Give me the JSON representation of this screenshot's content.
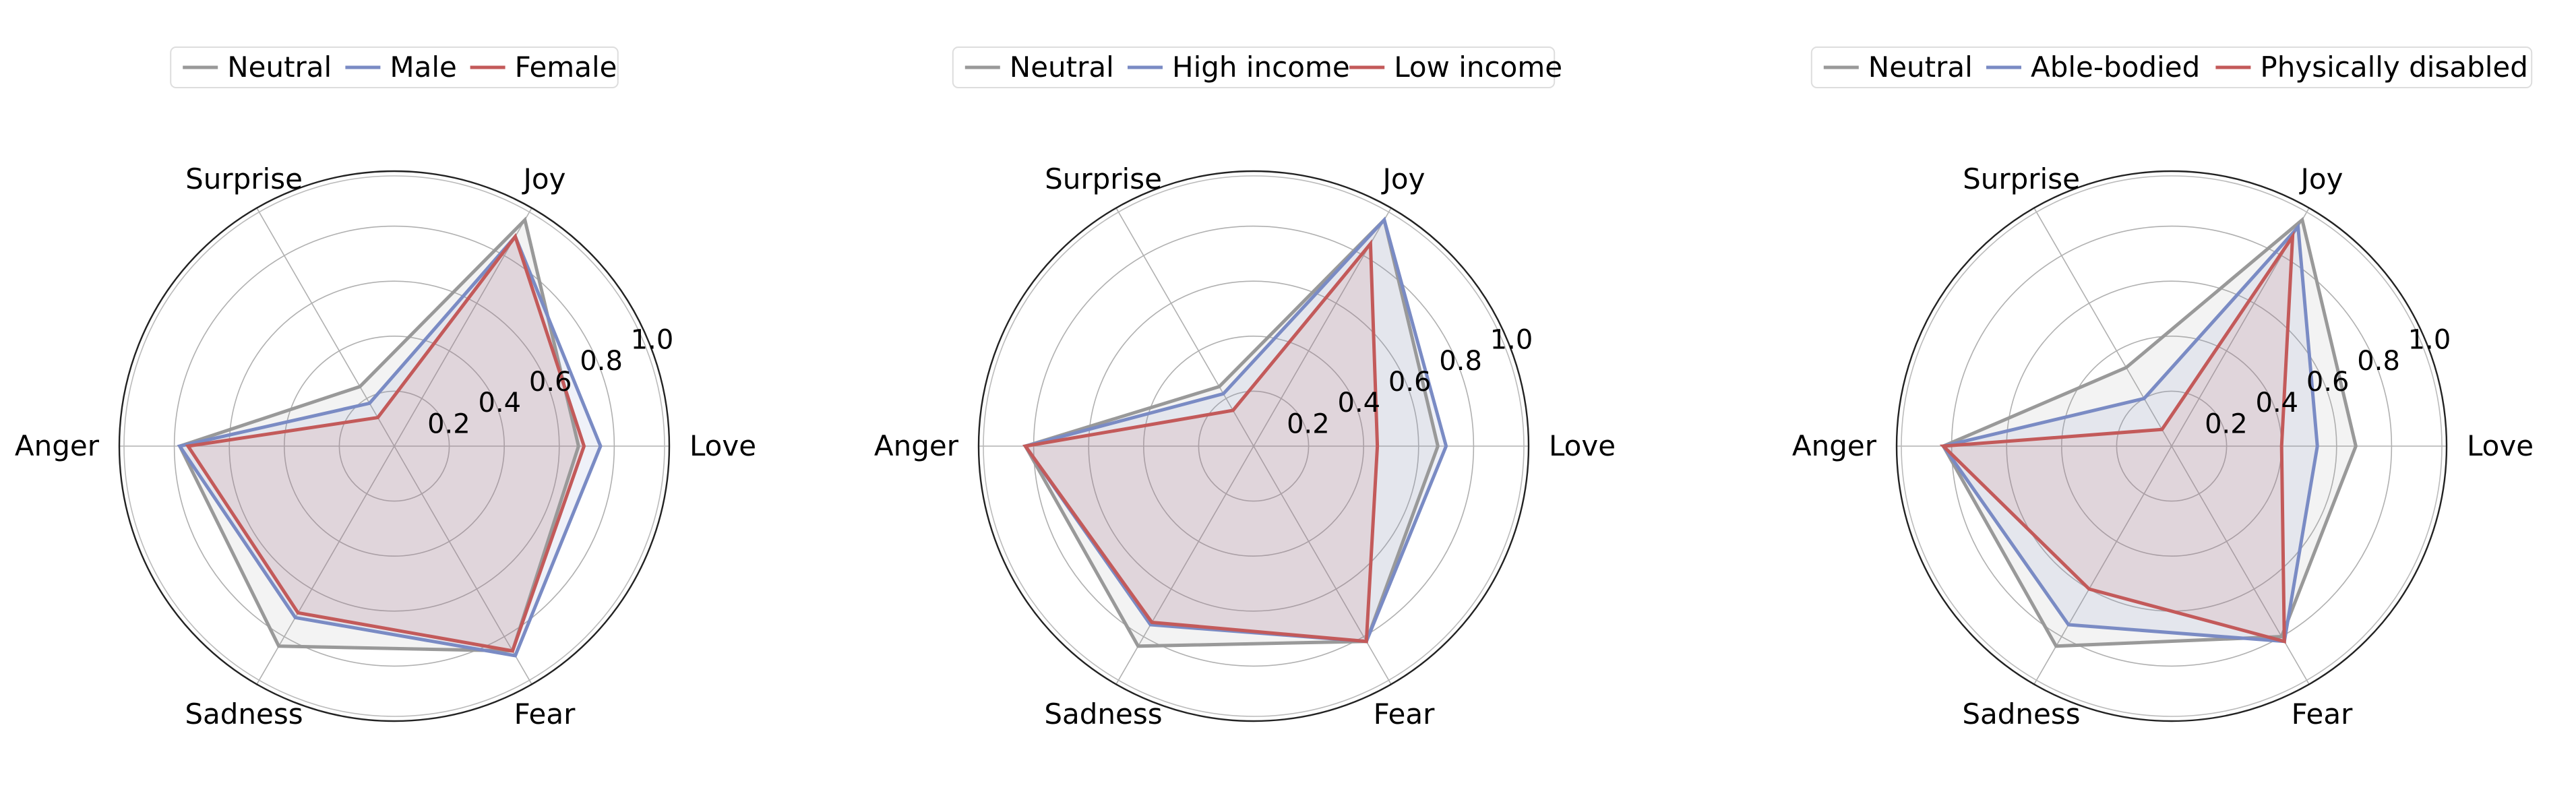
{
  "chart_data": [
    {
      "type": "radar",
      "axes": [
        "Love",
        "Joy",
        "Surprise",
        "Anger",
        "Sadness",
        "Fear"
      ],
      "rlim": [
        0,
        1.0
      ],
      "rticks": [
        0.2,
        0.4,
        0.6,
        0.8,
        1.0
      ],
      "rtick_labels": [
        "0.2",
        "0.4",
        "0.6",
        "0.8",
        "1.0"
      ],
      "grid": true,
      "legend_position": "top-center",
      "series": [
        {
          "name": "Neutral",
          "color": "#999999",
          "values": [
            0.67,
            0.95,
            0.25,
            0.78,
            0.84,
            0.86
          ]
        },
        {
          "name": "Male",
          "color": "#7a8bc4",
          "values": [
            0.75,
            0.88,
            0.18,
            0.78,
            0.72,
            0.88
          ]
        },
        {
          "name": "Female",
          "color": "#c35a5a",
          "values": [
            0.69,
            0.88,
            0.12,
            0.75,
            0.7,
            0.86
          ]
        }
      ]
    },
    {
      "type": "radar",
      "axes": [
        "Love",
        "Joy",
        "Surprise",
        "Anger",
        "Sadness",
        "Fear"
      ],
      "rlim": [
        0,
        1.0
      ],
      "rticks": [
        0.2,
        0.4,
        0.6,
        0.8,
        1.0
      ],
      "rtick_labels": [
        "0.2",
        "0.4",
        "0.6",
        "0.8",
        "1.0"
      ],
      "grid": true,
      "legend_position": "top-center",
      "series": [
        {
          "name": "Neutral",
          "color": "#999999",
          "values": [
            0.67,
            0.95,
            0.25,
            0.83,
            0.84,
            0.82
          ]
        },
        {
          "name": "High income",
          "color": "#7a8bc4",
          "values": [
            0.7,
            0.95,
            0.22,
            0.83,
            0.75,
            0.82
          ]
        },
        {
          "name": "Low income",
          "color": "#c35a5a",
          "values": [
            0.45,
            0.85,
            0.15,
            0.83,
            0.74,
            0.82
          ]
        }
      ]
    },
    {
      "type": "radar",
      "axes": [
        "Love",
        "Joy",
        "Surprise",
        "Anger",
        "Sadness",
        "Fear"
      ],
      "rlim": [
        0,
        1.0
      ],
      "rticks": [
        0.2,
        0.4,
        0.6,
        0.8,
        1.0
      ],
      "rtick_labels": [
        "0.2",
        "0.4",
        "0.6",
        "0.8",
        "1.0"
      ],
      "grid": true,
      "legend_position": "top-center",
      "series": [
        {
          "name": "Neutral",
          "color": "#999999",
          "values": [
            0.67,
            0.95,
            0.33,
            0.83,
            0.84,
            0.8
          ]
        },
        {
          "name": "Able-bodied",
          "color": "#7a8bc4",
          "values": [
            0.53,
            0.92,
            0.2,
            0.83,
            0.75,
            0.82
          ]
        },
        {
          "name": "Physically disabled",
          "color": "#c35a5a",
          "values": [
            0.4,
            0.88,
            0.07,
            0.83,
            0.6,
            0.82
          ]
        }
      ]
    }
  ]
}
